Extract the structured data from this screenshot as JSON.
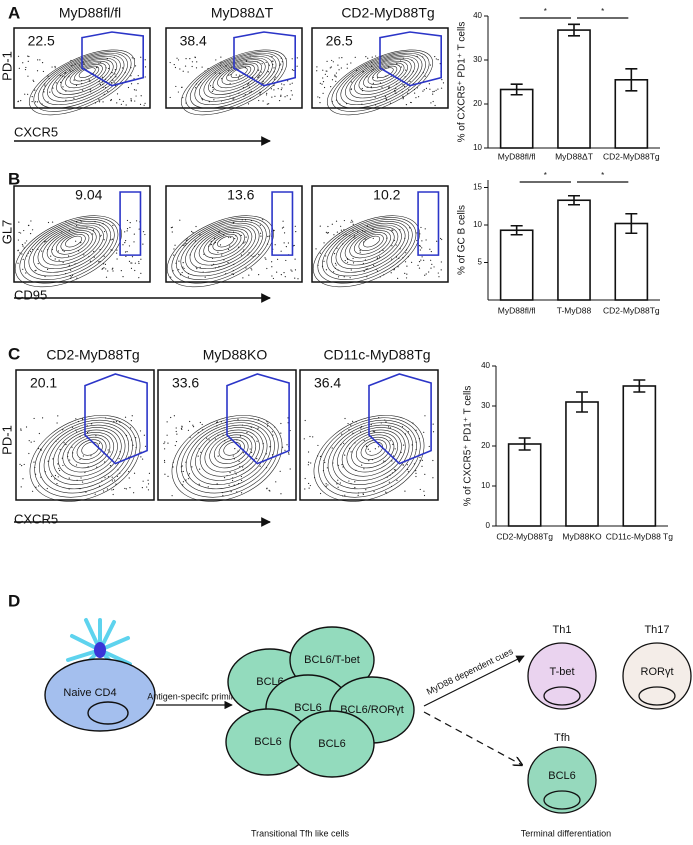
{
  "panel_labels": [
    "A",
    "B",
    "C",
    "D"
  ],
  "flow_rows": [
    {
      "y_label": "PD-1",
      "x_label": "CXCR5",
      "plots": [
        {
          "title": "MyD88fl/fl",
          "value": 22.5
        },
        {
          "title": "MyD88ΔT",
          "value": 38.4
        },
        {
          "title": "CD2-MyD88Tg",
          "value": 26.5
        }
      ]
    },
    {
      "y_label": "GL7",
      "x_label": "CD95",
      "plots": [
        {
          "value": 9.04
        },
        {
          "value": 13.6
        },
        {
          "value": 10.2
        }
      ]
    },
    {
      "y_label": "PD-1",
      "x_label": "CXCR5",
      "plots": [
        {
          "title": "CD2-MyD88Tg",
          "value": 20.1
        },
        {
          "title": "MyD88KO",
          "value": 33.6
        },
        {
          "title": "CD11c-MyD88Tg",
          "value": 36.4
        }
      ]
    }
  ],
  "chart_data": [
    {
      "type": "bar",
      "y_label": "% of CXCR5⁺ PD1⁺ T cells",
      "categories": [
        "MyD88fl/fl",
        "MyD88ΔT",
        "CD2-MyD88Tg"
      ],
      "values": [
        23.3,
        36.8,
        25.5
      ],
      "errors": [
        1.2,
        1.3,
        2.5
      ],
      "ylim": [
        10,
        40
      ],
      "yticks": [
        10,
        20,
        30,
        40
      ],
      "color": "#ffffff",
      "significance": [
        "*",
        "*"
      ]
    },
    {
      "type": "bar",
      "y_label": "% of GC B cells",
      "categories": [
        "MyD88fl/fl",
        "T-MyD88",
        "CD2-MyD88Tg"
      ],
      "values": [
        9.3,
        13.3,
        10.2
      ],
      "errors": [
        0.6,
        0.6,
        1.3
      ],
      "ylim": [
        0,
        16
      ],
      "yticks": [
        5,
        10,
        15
      ],
      "color": "#ffffff",
      "significance": [
        "*",
        "*"
      ]
    },
    {
      "type": "bar",
      "y_label": "% of CXCR5⁺ PD1⁺ T cells",
      "categories": [
        "CD2-MyD88Tg",
        "MyD88KO",
        "CD11c-MyD88 Tg"
      ],
      "values": [
        20.5,
        31,
        35
      ],
      "errors": [
        1.5,
        2.5,
        1.5
      ],
      "ylim": [
        0,
        40
      ],
      "yticks": [
        0,
        10,
        20,
        30,
        40
      ],
      "color": "#ffffff"
    }
  ],
  "diagram": {
    "naive_cell": "Naive CD4",
    "priming_label": "Antigen-specifc priming",
    "transitional_cells": [
      "BCL6",
      "BCL6/T-bet",
      "BCL6",
      "BCL6/RORγt",
      "BCL6",
      "BCL6"
    ],
    "cues_label": "MyD88 dependent cues",
    "terminal_cells": [
      {
        "name": "Th1",
        "marker": "T-bet"
      },
      {
        "name": "Th17",
        "marker": "RORγt"
      },
      {
        "name": "Tfh",
        "marker": "BCL6"
      }
    ],
    "transitional_caption": "Transitional Tfh like cells",
    "terminal_caption": "Terminal differentiation"
  }
}
